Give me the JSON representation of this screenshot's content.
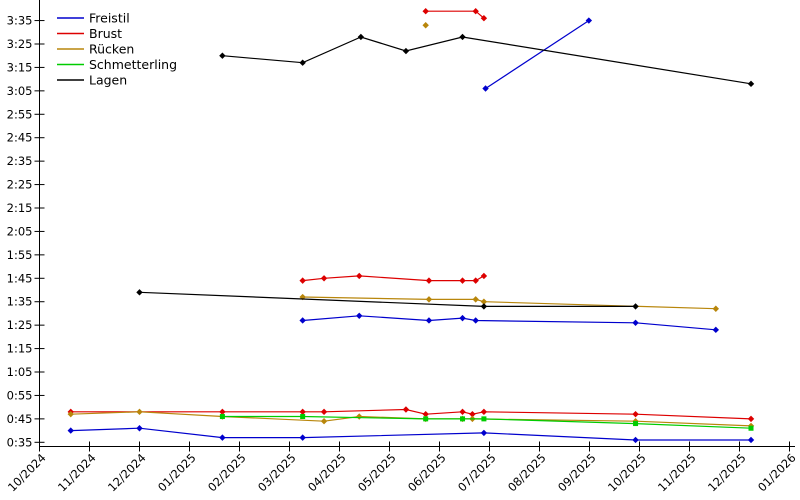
{
  "page": {
    "background": "#ffffff",
    "title": ""
  },
  "chart_data": {
    "type": "line",
    "title": "",
    "xlabel": "",
    "ylabel": "",
    "grid": false,
    "axis_color": "#000000",
    "x_axis": {
      "tick_labels": [
        "10/2024",
        "11/2024",
        "12/2024",
        "01/2025",
        "02/2025",
        "03/2025",
        "04/2025",
        "05/2025",
        "06/2025",
        "07/2025",
        "08/2025",
        "09/2025",
        "10/2025",
        "11/2025",
        "12/2025",
        "01/2026"
      ],
      "label_rotation_deg": -45
    },
    "y_axis": {
      "tick_labels": [
        "3:35",
        "3:25",
        "3:15",
        "3:05",
        "2:55",
        "2:45",
        "2:35",
        "2:25",
        "2:15",
        "2:05",
        "1:55",
        "1:45",
        "1:35",
        "1:25",
        "1:15",
        "1:05",
        "0:55",
        "0:45",
        "0:35"
      ],
      "unit": "min:sec",
      "min_time": "0:35",
      "max_time": "3:35",
      "tick_step_seconds": 10
    },
    "legend": {
      "position": "top-left",
      "boxed": false
    },
    "series": [
      {
        "name": "Freistil",
        "color": "#0000cd",
        "marker": "diamond",
        "segments": [
          [
            [
              "2024-10-20",
              "0:40"
            ],
            [
              "2024-12-01",
              "0:41"
            ],
            [
              "2025-01-21",
              "0:37"
            ],
            [
              "2025-03-09",
              "0:37"
            ],
            [
              "2025-06-28",
              "0:39"
            ],
            [
              "2025-09-29",
              "0:36"
            ],
            [
              "2025-12-08",
              "0:36"
            ]
          ],
          [
            [
              "2025-03-09",
              "1:27"
            ],
            [
              "2025-04-13",
              "1:29"
            ],
            [
              "2025-05-25",
              "1:27"
            ],
            [
              "2025-06-15",
              "1:28"
            ],
            [
              "2025-06-23",
              "1:27"
            ],
            [
              "2025-09-29",
              "1:26"
            ],
            [
              "2025-11-17",
              "1:23"
            ]
          ],
          [
            [
              "2025-06-29",
              "3:06"
            ],
            [
              "2025-08-31",
              "3:35"
            ]
          ]
        ]
      },
      {
        "name": "Brust",
        "color": "#dd0000",
        "marker": "diamond",
        "segments": [
          [
            [
              "2024-10-20",
              "0:48"
            ],
            [
              "2025-01-21",
              "0:48"
            ],
            [
              "2025-03-09",
              "0:48"
            ],
            [
              "2025-03-22",
              "0:48"
            ],
            [
              "2025-05-11",
              "0:49"
            ],
            [
              "2025-05-23",
              "0:47"
            ],
            [
              "2025-06-15",
              "0:48"
            ],
            [
              "2025-06-21",
              "0:47"
            ],
            [
              "2025-06-28",
              "0:48"
            ],
            [
              "2025-09-29",
              "0:47"
            ],
            [
              "2025-12-08",
              "0:45"
            ]
          ],
          [
            [
              "2025-03-09",
              "1:44"
            ],
            [
              "2025-03-22",
              "1:45"
            ],
            [
              "2025-04-13",
              "1:46"
            ],
            [
              "2025-05-25",
              "1:44"
            ],
            [
              "2025-06-15",
              "1:44"
            ],
            [
              "2025-06-23",
              "1:44"
            ],
            [
              "2025-06-28",
              "1:46"
            ]
          ],
          [
            [
              "2025-05-23",
              "3:39"
            ],
            [
              "2025-06-23",
              "3:39"
            ],
            [
              "2025-06-28",
              "3:36"
            ]
          ]
        ]
      },
      {
        "name": "Rücken",
        "color": "#b8860b",
        "marker": "diamond",
        "segments": [
          [
            [
              "2024-10-20",
              "0:47"
            ],
            [
              "2024-12-01",
              "0:48"
            ],
            [
              "2025-01-21",
              "0:46"
            ],
            [
              "2025-03-22",
              "0:44"
            ],
            [
              "2025-04-13",
              "0:46"
            ],
            [
              "2025-05-23",
              "0:45"
            ],
            [
              "2025-06-15",
              "0:45"
            ],
            [
              "2025-06-21",
              "0:45"
            ],
            [
              "2025-09-29",
              "0:44"
            ],
            [
              "2025-12-08",
              "0:42"
            ]
          ],
          [
            [
              "2025-03-09",
              "1:37"
            ],
            [
              "2025-05-25",
              "1:36"
            ],
            [
              "2025-06-23",
              "1:36"
            ],
            [
              "2025-06-28",
              "1:35"
            ],
            [
              "2025-11-17",
              "1:32"
            ]
          ],
          [
            [
              "2025-05-23",
              "3:33"
            ]
          ]
        ]
      },
      {
        "name": "Schmetterling",
        "color": "#00cc00",
        "marker": "square",
        "segments": [
          [
            [
              "2025-01-21",
              "0:46"
            ],
            [
              "2025-03-09",
              "0:46"
            ],
            [
              "2025-05-23",
              "0:45"
            ],
            [
              "2025-06-15",
              "0:45"
            ],
            [
              "2025-06-28",
              "0:45"
            ],
            [
              "2025-09-29",
              "0:43"
            ],
            [
              "2025-12-08",
              "0:41"
            ]
          ]
        ]
      },
      {
        "name": "Lagen",
        "color": "#000000",
        "marker": "diamond",
        "segments": [
          [
            [
              "2024-12-01",
              "1:39"
            ],
            [
              "2025-06-28",
              "1:33"
            ],
            [
              "2025-09-29",
              "1:33"
            ]
          ],
          [
            [
              "2025-01-21",
              "3:20"
            ],
            [
              "2025-03-09",
              "3:17"
            ],
            [
              "2025-04-14",
              "3:28"
            ],
            [
              "2025-05-11",
              "3:22"
            ],
            [
              "2025-06-15",
              "3:28"
            ],
            [
              "2025-12-08",
              "3:08"
            ]
          ]
        ]
      }
    ]
  }
}
